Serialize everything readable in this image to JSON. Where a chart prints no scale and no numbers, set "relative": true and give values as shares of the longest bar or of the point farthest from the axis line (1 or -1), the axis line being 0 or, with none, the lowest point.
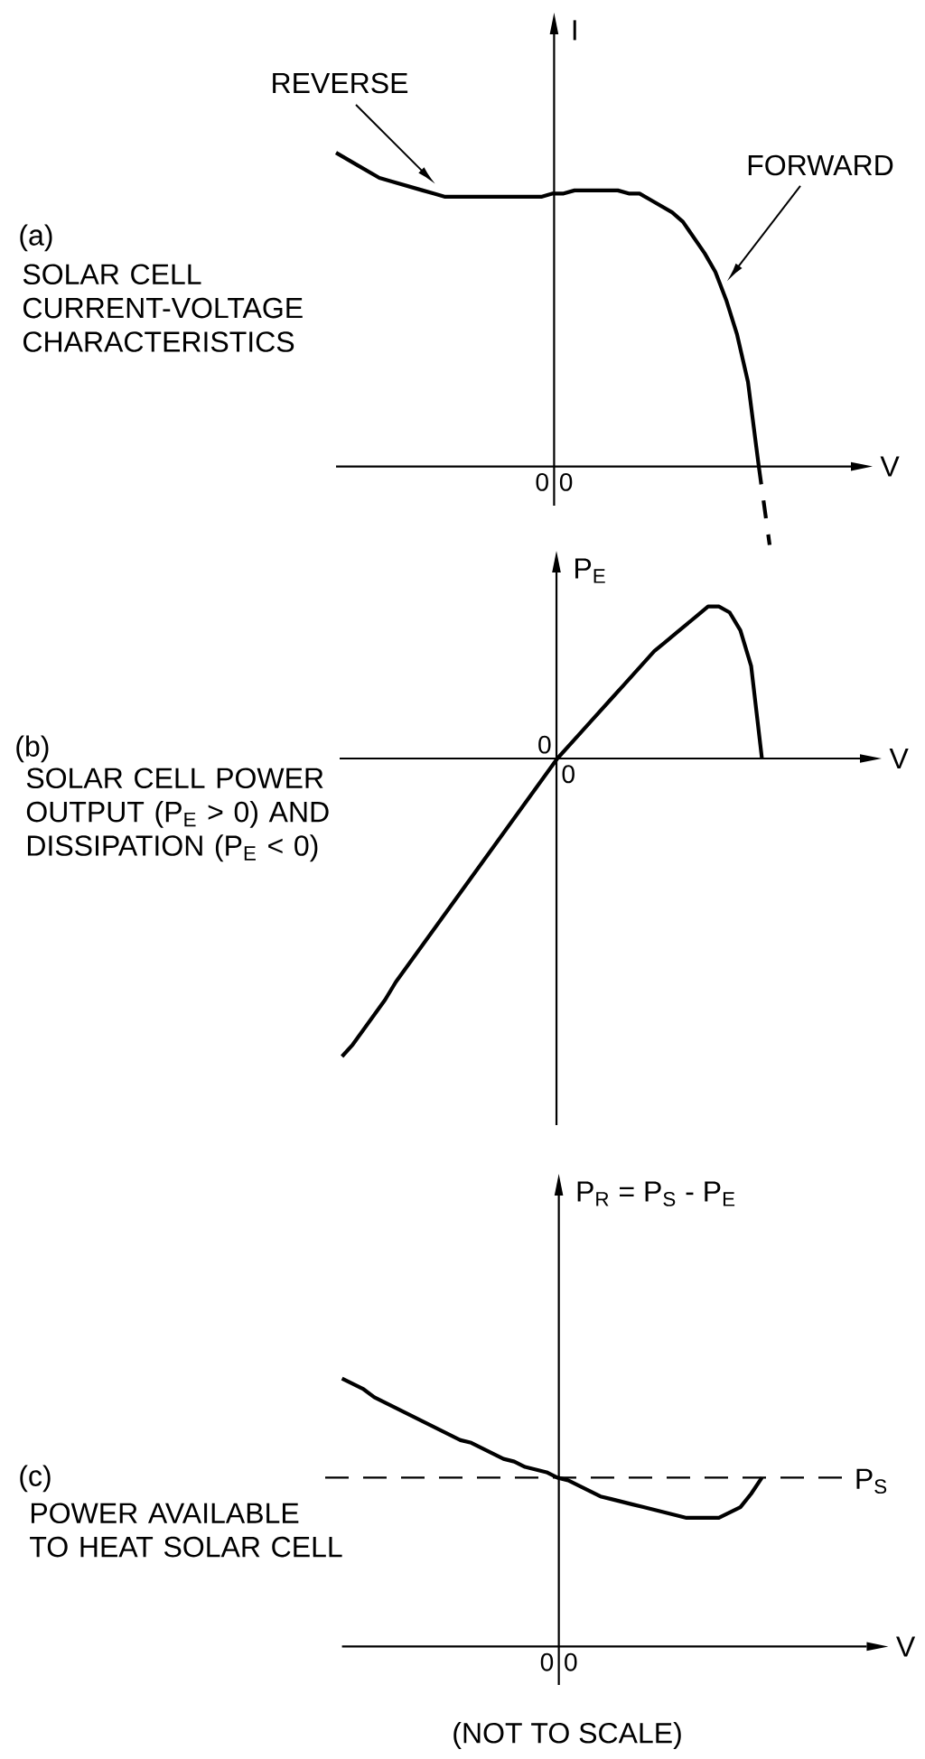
{
  "chart_data": [
    {
      "type": "line",
      "subtitle": "SOLAR CELL CURRENT-VOLTAGE CHARACTERISTICS",
      "xlabel": "V",
      "ylabel": "I",
      "relative": true,
      "categories": [
        null,
        null,
        null,
        null,
        null,
        null,
        null,
        null,
        null,
        null,
        null,
        null,
        null,
        null,
        null,
        null,
        null,
        null,
        null,
        null,
        null,
        null,
        null,
        null,
        null,
        null,
        null,
        null,
        null,
        null,
        null,
        null,
        null,
        null,
        null,
        null,
        null,
        null,
        null,
        null,
        null
      ],
      "series": [
        {
          "color": "#000000",
          "values": [
            1,
            0.98,
            0.96,
            0.94,
            0.92,
            0.91,
            0.9,
            0.89,
            0.88,
            0.87,
            0.86,
            0.86,
            0.86,
            0.86,
            0.86,
            0.86,
            0.86,
            0.86,
            0.86,
            0.86,
            0.87,
            0.87,
            0.88,
            0.88,
            0.88,
            0.88,
            0.88,
            0.87,
            0.87,
            0.85,
            0.83,
            0.81,
            0.78,
            0.73,
            0.68,
            0.62,
            0.53,
            0.42,
            0.27,
            0,
            null
          ]
        },
        {
          "color": "#000000",
          "line_style": "dashed",
          "values": [
            null,
            null,
            null,
            null,
            null,
            null,
            null,
            null,
            null,
            null,
            null,
            null,
            null,
            null,
            null,
            null,
            null,
            null,
            null,
            null,
            null,
            null,
            null,
            null,
            null,
            null,
            null,
            null,
            null,
            null,
            null,
            null,
            null,
            null,
            null,
            null,
            null,
            null,
            null,
            0,
            -0.25
          ]
        }
      ],
      "annotations": [
        "(a)",
        "REVERSE",
        "FORWARD",
        "0",
        "0"
      ]
    },
    {
      "type": "line",
      "subtitle": "SOLAR CELL POWER OUTPUT (P$_{E}$ > 0) AND DISSIPATION (P$_{E}$ < 0)",
      "xlabel": "V",
      "ylabel": "P$_{E}$",
      "relative": true,
      "categories": [
        null,
        null,
        null,
        null,
        null,
        null,
        null,
        null,
        null,
        null,
        null,
        null,
        null,
        null,
        null,
        null,
        null,
        null,
        null,
        null,
        null,
        null,
        null,
        null,
        null,
        null,
        null,
        null,
        null,
        null,
        null,
        null,
        null,
        null,
        null,
        null,
        null,
        null,
        null,
        null
      ],
      "series": [
        {
          "color": "#000000",
          "values": [
            -1,
            -0.96,
            -0.91,
            -0.86,
            -0.81,
            -0.75,
            -0.7,
            -0.65,
            -0.6,
            -0.55,
            -0.5,
            -0.45,
            -0.4,
            -0.35,
            -0.3,
            -0.25,
            -0.2,
            -0.15,
            -0.1,
            -0.05,
            0,
            0.04,
            0.08,
            0.12,
            0.16,
            0.2,
            0.24,
            0.28,
            0.32,
            0.36,
            0.39,
            0.42,
            0.45,
            0.48,
            0.51,
            0.51,
            0.49,
            0.43,
            0.31,
            0
          ]
        }
      ],
      "annotations": [
        "(b)",
        "0",
        "0"
      ]
    },
    {
      "type": "line",
      "subtitle": "POWER AVAILABLE TO HEAT SOLAR CELL",
      "xlabel": "V",
      "ylabel": "P$_{R}$ = P$_{S}$ - P$_{E}$",
      "relative": true,
      "categories": [
        null,
        null,
        null,
        null,
        null,
        null,
        null,
        null,
        null,
        null,
        null,
        null,
        null,
        null,
        null,
        null,
        null,
        null,
        null,
        null,
        null,
        null,
        null,
        null,
        null,
        null,
        null,
        null,
        null,
        null,
        null,
        null,
        null,
        null,
        null,
        null,
        null,
        null,
        null,
        null
      ],
      "series": [
        {
          "color": "#000000",
          "values": [
            1,
            0.98,
            0.96,
            0.93,
            0.91,
            0.89,
            0.87,
            0.85,
            0.83,
            0.81,
            0.79,
            0.77,
            0.76,
            0.74,
            0.72,
            0.7,
            0.69,
            0.67,
            0.66,
            0.65,
            0.63,
            0.62,
            0.6,
            0.58,
            0.56,
            0.55,
            0.54,
            0.53,
            0.52,
            0.51,
            0.5,
            0.49,
            0.48,
            0.48,
            0.48,
            0.48,
            0.5,
            0.52,
            0.57,
            0.63
          ]
        }
      ],
      "ref_lines": [
        {
          "axis": "y",
          "value": 0.63,
          "label": "P$_{S}$",
          "line_style": "dashed"
        }
      ],
      "annotations": [
        "(c)",
        "0",
        "0",
        "(NOT TO SCALE)"
      ]
    }
  ]
}
